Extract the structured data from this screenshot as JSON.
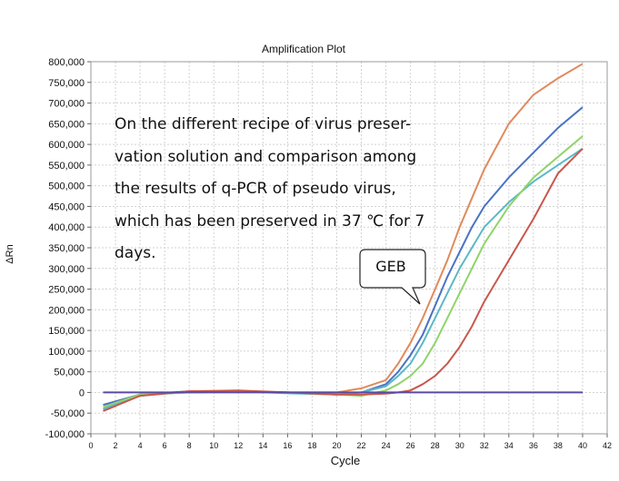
{
  "chart_data": {
    "type": "line",
    "title": "Amplification Plot",
    "xlabel": "Cycle",
    "ylabel": "ΔRn",
    "xlim": [
      0,
      42
    ],
    "ylim": [
      -100000,
      800000
    ],
    "xticks": [
      0,
      2,
      4,
      6,
      8,
      10,
      12,
      14,
      16,
      18,
      20,
      22,
      24,
      26,
      28,
      30,
      32,
      34,
      36,
      38,
      40,
      42
    ],
    "yticks": [
      -100000,
      -50000,
      0,
      50000,
      100000,
      150000,
      200000,
      250000,
      300000,
      350000,
      400000,
      450000,
      500000,
      550000,
      600000,
      650000,
      700000,
      750000,
      800000
    ],
    "ytick_labels": [
      "-100,000",
      "-50,000",
      "0",
      "50,000",
      "100,000",
      "150,000",
      "200,000",
      "250,000",
      "300,000",
      "350,000",
      "400,000",
      "450,000",
      "500,000",
      "550,000",
      "600,000",
      "650,000",
      "700,000",
      "750,000",
      "800,000"
    ],
    "grid": true,
    "series": [
      {
        "color": "#e08a5c",
        "x": [
          1,
          4,
          8,
          12,
          16,
          20,
          22,
          24,
          25,
          26,
          27,
          28,
          29,
          30,
          31,
          32,
          34,
          36,
          38,
          40
        ],
        "y": [
          -40000,
          -5000,
          0,
          2000,
          0,
          0,
          10000,
          30000,
          70000,
          120000,
          180000,
          250000,
          320000,
          400000,
          470000,
          540000,
          650000,
          720000,
          760000,
          795000
        ]
      },
      {
        "color": "#4a72c4",
        "x": [
          1,
          4,
          8,
          12,
          16,
          20,
          22,
          24,
          25,
          26,
          27,
          28,
          29,
          30,
          31,
          32,
          34,
          36,
          38,
          40
        ],
        "y": [
          -30000,
          -5000,
          3000,
          3000,
          0,
          -5000,
          0,
          20000,
          50000,
          90000,
          140000,
          210000,
          280000,
          340000,
          400000,
          450000,
          520000,
          580000,
          640000,
          690000
        ]
      },
      {
        "color": "#5bb8c8",
        "x": [
          1,
          4,
          8,
          12,
          16,
          20,
          22,
          24,
          25,
          26,
          27,
          28,
          29,
          30,
          31,
          32,
          34,
          36,
          38,
          40
        ],
        "y": [
          -40000,
          -8000,
          2000,
          3000,
          -2000,
          -5000,
          0,
          15000,
          40000,
          70000,
          120000,
          180000,
          240000,
          300000,
          350000,
          400000,
          460000,
          510000,
          550000,
          590000
        ]
      },
      {
        "color": "#8fd46a",
        "x": [
          1,
          4,
          8,
          12,
          16,
          20,
          22,
          24,
          25,
          26,
          27,
          28,
          29,
          30,
          31,
          32,
          34,
          36,
          38,
          40
        ],
        "y": [
          -35000,
          -5000,
          0,
          2000,
          0,
          -5000,
          -8000,
          5000,
          20000,
          40000,
          70000,
          120000,
          180000,
          240000,
          300000,
          360000,
          450000,
          520000,
          570000,
          620000
        ]
      },
      {
        "color": "#c8584c",
        "x": [
          1,
          4,
          8,
          12,
          16,
          20,
          22,
          24,
          25,
          26,
          27,
          28,
          29,
          30,
          31,
          32,
          34,
          36,
          38,
          40
        ],
        "y": [
          -45000,
          -8000,
          3000,
          5000,
          0,
          -5000,
          -5000,
          -3000,
          0,
          5000,
          20000,
          40000,
          70000,
          110000,
          160000,
          220000,
          320000,
          420000,
          530000,
          590000
        ]
      },
      {
        "color": "#5a4aa0",
        "x": [
          1,
          40
        ],
        "y": [
          0,
          0
        ]
      }
    ],
    "annotation": "On the different recipe of virus preser-\nvation solution and comparison among\nthe results of q-PCR of pseudo virus,\nwhich has been preserved in 37 ℃ for 7\ndays.",
    "callout": "GEB"
  }
}
